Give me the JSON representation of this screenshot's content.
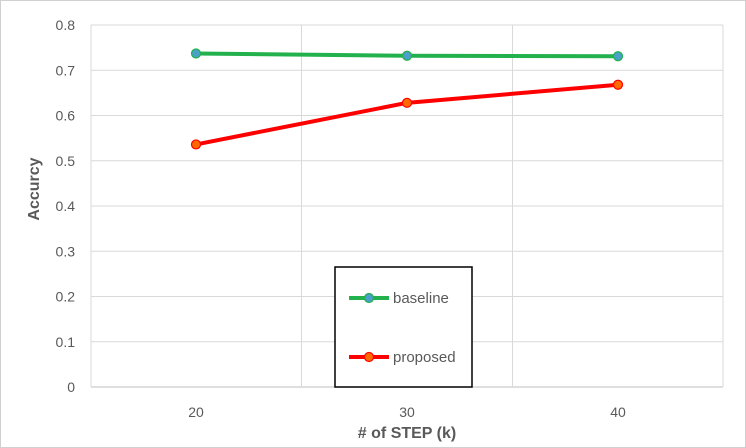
{
  "chart_data": {
    "type": "line",
    "xlabel": "# of STEP (k)",
    "ylabel": "Accurcy",
    "categories": [
      "20",
      "30",
      "40"
    ],
    "ylim": [
      0,
      0.8
    ],
    "yticks": [
      "0",
      "0.1",
      "0.2",
      "0.3",
      "0.4",
      "0.5",
      "0.6",
      "0.7",
      "0.8"
    ],
    "grid": true,
    "legend_position": "bottom-center",
    "series": [
      {
        "name": "baseline",
        "values": [
          0.737,
          0.732,
          0.731
        ],
        "line_color": "#22b14c",
        "marker_color": "#4aa0c8"
      },
      {
        "name": "proposed",
        "values": [
          0.536,
          0.628,
          0.668
        ],
        "line_color": "#ff0000",
        "marker_color": "#ff6a00"
      }
    ]
  }
}
